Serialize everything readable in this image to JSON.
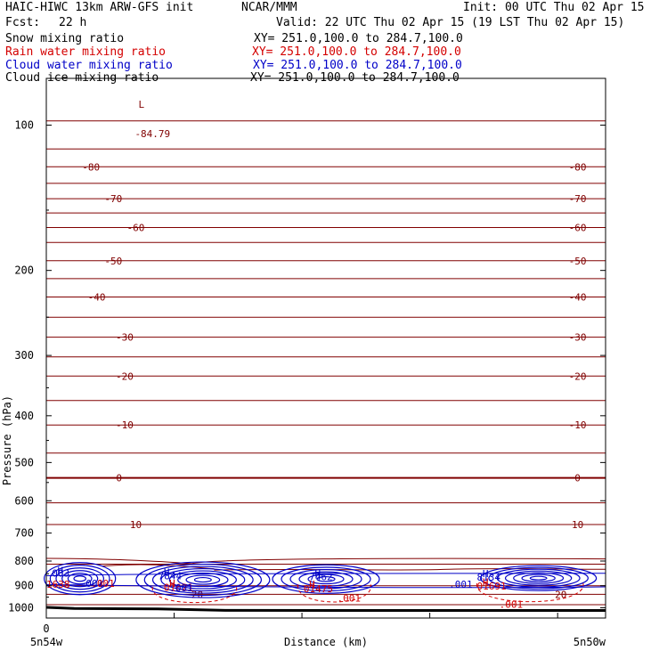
{
  "header": {
    "model": "HAIC-HIWC 13km ARW-GFS init",
    "org": "NCAR/MMM",
    "init": "Init: 00 UTC Thu 02 Apr 15",
    "fcst_label": "Fcst:",
    "fcst_value": "22 h",
    "valid": "Valid: 22 UTC Thu 02 Apr 15 (19 LST Thu 02 Apr 15)"
  },
  "fields": [
    {
      "name": "Snow mixing ratio",
      "xy": "XY= 251.0,100.0 to 284.7,100.0",
      "color": "#000000"
    },
    {
      "name": "Rain water mixing ratio",
      "xy": "XY= 251.0,100.0 to 284.7,100.0",
      "color": "#d40000"
    },
    {
      "name": "Cloud water mixing ratio",
      "xy": "XY= 251.0,100.0 to 284.7,100.0",
      "color": "#0000c8"
    },
    {
      "name": "Cloud ice mixing ratio",
      "xy": "XY= 251.0,100.0 to 284.7,100.0",
      "color": "#000000"
    }
  ],
  "colors": {
    "temperature": "#800000",
    "rain": "#d40000",
    "cloud": "#0000c8",
    "ground": "#000000"
  },
  "chart_data": {
    "type": "cross-section",
    "ylabel": "Pressure (hPa)",
    "xlabel": "Distance (km)",
    "y_axis": {
      "scale": "log",
      "range": [
        1050,
        80
      ],
      "ticks": [
        100,
        200,
        300,
        400,
        500,
        600,
        700,
        800,
        900,
        1000
      ]
    },
    "x_axis": {
      "range": [
        0,
        1
      ],
      "tick_labels": {
        "start": "0"
      }
    },
    "endpoint_labels": {
      "left": "5n54w",
      "right": "5n50w"
    },
    "isotherm_labels": [
      "-80",
      "-70",
      "-60",
      "-50",
      "-40",
      "-30",
      "-20",
      "-10",
      "0",
      "10",
      "20"
    ],
    "isotherms": [
      {
        "p": 122,
        "label": "-80"
      },
      {
        "p": 142,
        "label": "-70"
      },
      {
        "p": 163,
        "label": "-60"
      },
      {
        "p": 191,
        "label": "-50"
      },
      {
        "p": 227,
        "label": "-40"
      },
      {
        "p": 275,
        "label": "-30"
      },
      {
        "p": 331,
        "label": "-20"
      },
      {
        "p": 418,
        "label": "-10"
      },
      {
        "p": 538,
        "label": "0"
      },
      {
        "p": 672,
        "label": "10"
      },
      {
        "p": 938,
        "label": "20"
      }
    ],
    "low_marker": {
      "symbol": "L",
      "value": "-84.79"
    },
    "cloud_maxima": [
      {
        "symbol": "H",
        "value": "003"
      },
      {
        "symbol": "H",
        "value": "7844"
      },
      {
        "symbol": "H",
        "value": "7462"
      },
      {
        "symbol": "H",
        "value": "8134"
      }
    ],
    "rain_maxima": [
      {
        "symbol": "H",
        "value": "01621"
      },
      {
        "symbol": "H",
        "value": "01475"
      },
      {
        "symbol": "H",
        "value": "01691"
      }
    ],
    "cloud_labels": [
      ".001",
      ".001",
      ".001"
    ],
    "rain_labels": [
      "1638",
      ".001",
      ".001",
      ".001"
    ]
  }
}
